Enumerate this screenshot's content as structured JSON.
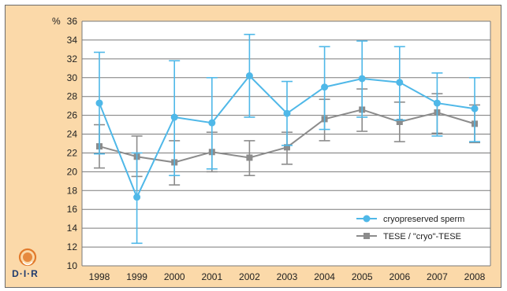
{
  "colors": {
    "background": "#fbd9a9",
    "plot_area": "#ffffff",
    "grid": "#7a7a7a",
    "cryo": "#4fb8e8",
    "tese": "#8c8c8c",
    "logo_accent": "#e27a2b",
    "logo_text": "#1f3b6e"
  },
  "logo": {
    "text": "D·I·R",
    "icon": "dir-logo-icon"
  },
  "chart_data": {
    "type": "line",
    "title": "",
    "xlabel": "",
    "ylabel": "%",
    "ylim": [
      10,
      36
    ],
    "ytick_step": 2,
    "grid": true,
    "legend_position": "bottom-right",
    "categories": [
      "1998",
      "1999",
      "2000",
      "2001",
      "2002",
      "2003",
      "2004",
      "2005",
      "2006",
      "2007",
      "2008"
    ],
    "series": [
      {
        "name": "cryopreserved sperm",
        "marker": "circle",
        "values": [
          27.3,
          17.3,
          25.8,
          25.2,
          30.2,
          26.2,
          29.0,
          29.9,
          29.5,
          27.3,
          26.7
        ],
        "error_low": [
          21.9,
          12.4,
          19.6,
          20.3,
          25.8,
          22.8,
          24.5,
          25.8,
          25.5,
          23.8,
          23.2
        ],
        "error_high": [
          32.7,
          22.0,
          31.8,
          30.0,
          34.6,
          29.6,
          33.3,
          33.9,
          33.3,
          30.5,
          30.0
        ]
      },
      {
        "name": "TESE / \"cryo\"-TESE",
        "marker": "square",
        "values": [
          22.7,
          21.6,
          21.0,
          22.1,
          21.5,
          22.6,
          25.6,
          26.6,
          25.3,
          26.3,
          25.1
        ],
        "error_low": [
          20.4,
          19.5,
          18.6,
          20.0,
          19.6,
          20.8,
          23.3,
          24.3,
          23.2,
          24.1,
          23.1
        ],
        "error_high": [
          25.0,
          23.8,
          23.3,
          24.2,
          23.3,
          24.2,
          27.7,
          28.8,
          27.4,
          28.3,
          27.1
        ]
      }
    ]
  }
}
